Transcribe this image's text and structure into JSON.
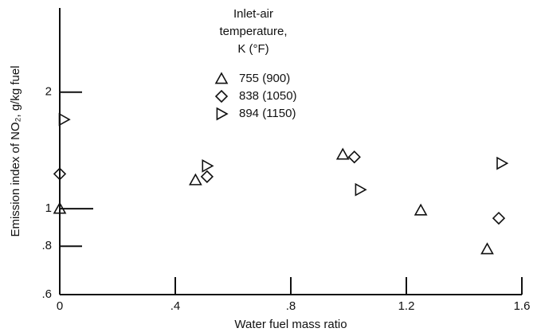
{
  "chart_data": {
    "type": "scatter",
    "xlabel": "Water fuel mass ratio",
    "ylabel": "Emission index of NO₂, g/kg fuel",
    "legend_title": [
      "Inlet-air",
      "temperature,",
      "K  (°F)"
    ],
    "xlim": [
      0,
      1.6
    ],
    "ylim": [
      0.6,
      3.3
    ],
    "log_y": true,
    "xticks": [
      0,
      {
        "value": 0.4,
        "label": ".4"
      },
      {
        "value": 0.8,
        "label": ".8"
      },
      1.2,
      1.6
    ],
    "yticks": [
      {
        "value": 0.6,
        "label": ".6"
      },
      {
        "value": 0.8,
        "label": ".8"
      },
      1,
      2
    ],
    "series": [
      {
        "name": "755 (900)",
        "color": "#111111",
        "marker": "triangle",
        "x": [
          0,
          0.47,
          0.98,
          1.25,
          1.48
        ],
        "values": [
          1.0,
          1.185,
          1.38,
          0.99,
          0.786
        ]
      },
      {
        "name": "838 (1050)",
        "color": "#111111",
        "marker": "diamond",
        "x": [
          0,
          0.51,
          1.02,
          1.52
        ],
        "values": [
          1.23,
          1.21,
          1.36,
          0.945
        ]
      },
      {
        "name": "894 (1150)",
        "color": "#111111",
        "marker": "triangle-right",
        "x": [
          0.014,
          0.51,
          1.04,
          1.53
        ],
        "values": [
          1.7,
          1.29,
          1.12,
          1.31
        ]
      }
    ]
  }
}
